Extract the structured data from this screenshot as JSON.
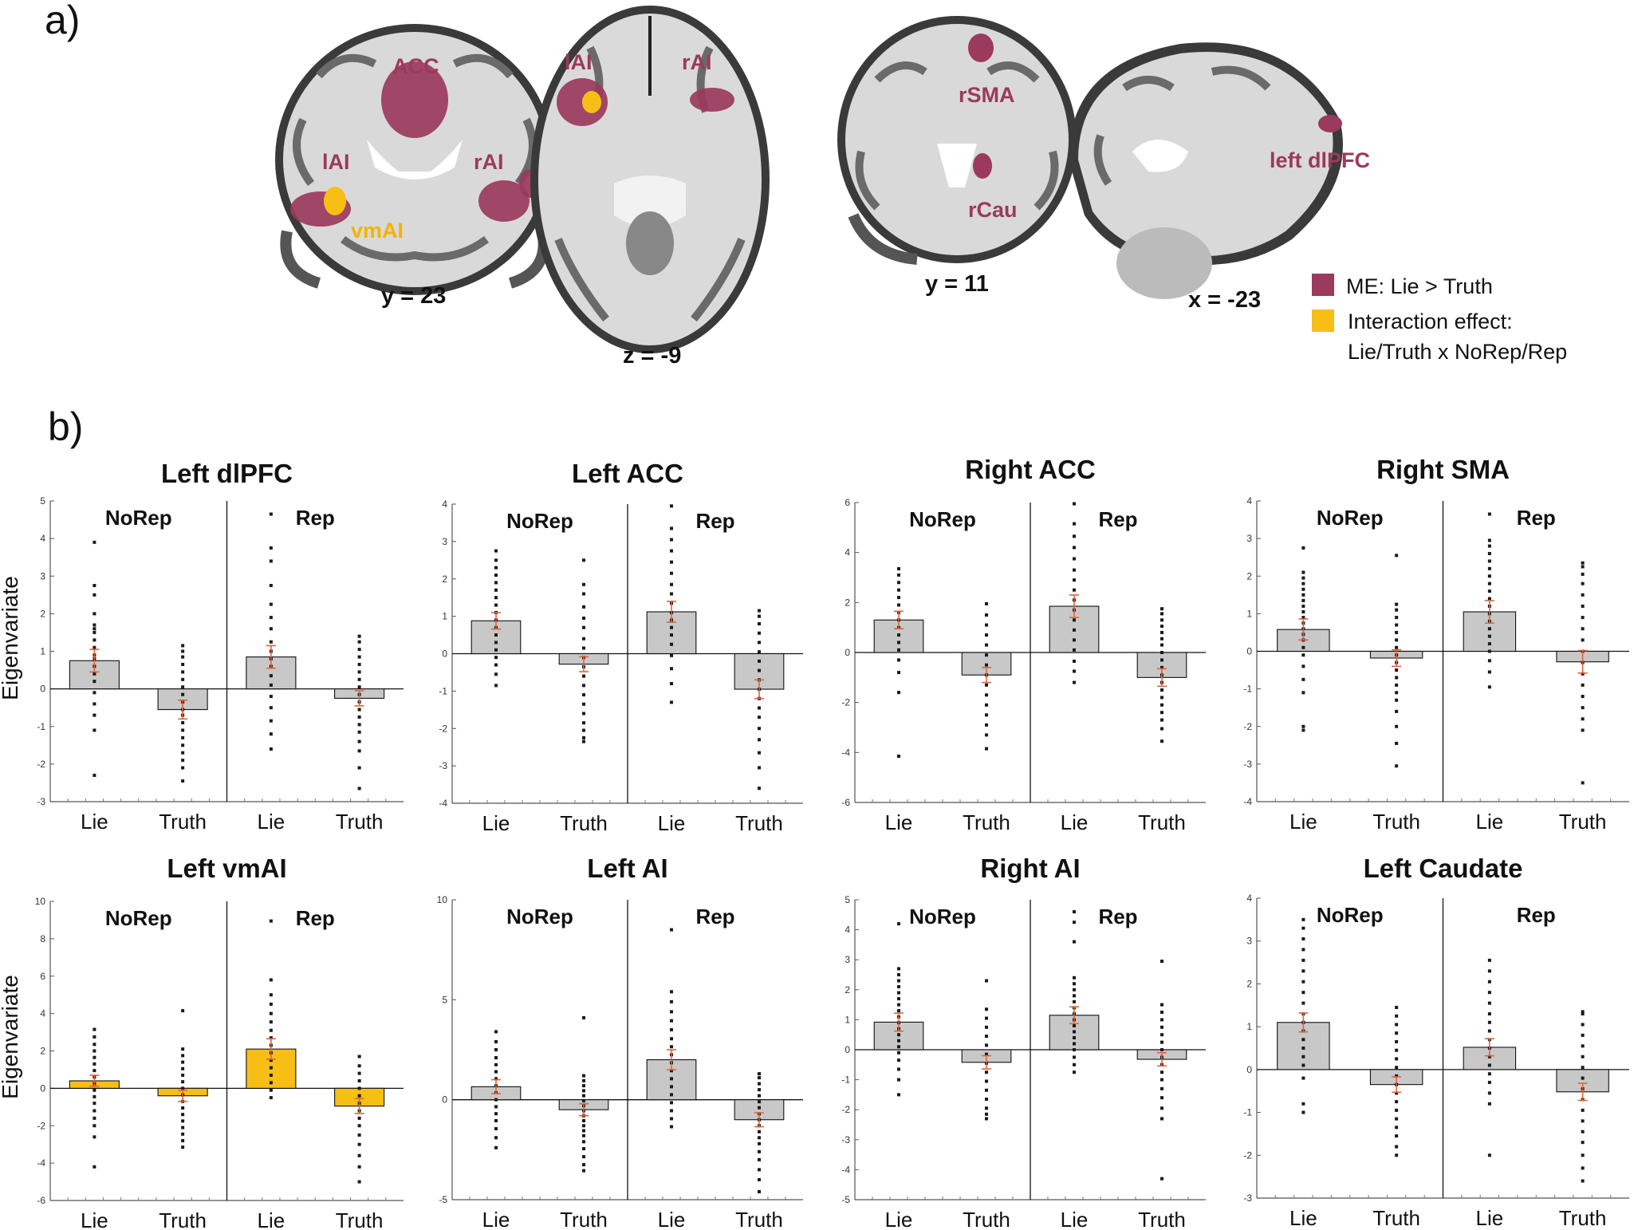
{
  "panel_labels": {
    "a": "a)",
    "b": "b)"
  },
  "brain": {
    "labels": {
      "acc": "ACC",
      "lai_cor": "lAI",
      "rai_cor": "rAI",
      "vmai": "vmAI",
      "lai_ax": "lAI",
      "rai_ax": "rAI",
      "rsma": "rSMA",
      "rcau": "rCau",
      "ldlpfc": "left dlPFC"
    },
    "coords": {
      "y23": "y = 23",
      "z9": "z = -9",
      "y11": "y = 11",
      "x23": "x = -23"
    }
  },
  "legend": {
    "me": "ME: Lie > Truth",
    "interaction_line1": "Interaction effect:",
    "interaction_line2": "Lie/Truth x NoRep/Rep"
  },
  "colors": {
    "me": "#9b3a5c",
    "interaction": "#f7be16",
    "bar": "#c8c8c8",
    "error": "#e0643c",
    "brain": "#d7d7d7"
  },
  "common": {
    "ylabel": "Eigenvariate",
    "group_labels": [
      "NoRep",
      "Rep"
    ],
    "categories": [
      "Lie",
      "Truth",
      "Lie",
      "Truth"
    ]
  },
  "chart_data": [
    {
      "type": "bar",
      "title": "Left dlPFC",
      "ylim": [
        -3,
        5
      ],
      "yticks": [
        -3,
        -2,
        -1,
        0,
        1,
        2,
        3,
        4,
        5
      ],
      "values": [
        0.75,
        -0.55,
        0.85,
        -0.25
      ],
      "errors": [
        0.3,
        0.25,
        0.3,
        0.2
      ],
      "color": "#c8c8c8",
      "points": [
        [
          3.9,
          2.75,
          2.5,
          2,
          1.7,
          1.6,
          1.5,
          1.3,
          1.1,
          0.9,
          0.8,
          0.6,
          0.4,
          0.2,
          -0.1,
          -0.4,
          -0.7,
          -1.1,
          -2.3
        ],
        [
          1.15,
          1.0,
          0.85,
          0.65,
          0.45,
          0.25,
          0.05,
          -0.15,
          -0.35,
          -0.55,
          -0.7,
          -0.9,
          -1.1,
          -1.3,
          -1.5,
          -1.7,
          -1.9,
          -2.1,
          -2.45
        ],
        [
          4.65,
          3.75,
          3.4,
          2.75,
          2.25,
          1.9,
          1.6,
          1.25,
          1.0,
          0.8,
          0.6,
          0.35,
          0.1,
          -0.2,
          -0.5,
          -0.85,
          -1.2,
          -1.6
        ],
        [
          1.4,
          1.25,
          1.05,
          0.85,
          0.65,
          0.45,
          0.25,
          0.05,
          -0.15,
          -0.35,
          -0.55,
          -0.75,
          -0.95,
          -1.15,
          -1.4,
          -1.65,
          -2.1,
          -2.65
        ]
      ]
    },
    {
      "type": "bar",
      "title": "Left ACC",
      "ylim": [
        -4,
        4
      ],
      "yticks": [
        -4,
        -3,
        -2,
        -1,
        0,
        1,
        2,
        3,
        4
      ],
      "values": [
        0.88,
        -0.28,
        1.12,
        -0.95
      ],
      "errors": [
        0.22,
        0.2,
        0.28,
        0.25
      ],
      "color": "#c8c8c8",
      "points": [
        [
          2.75,
          2.5,
          2.3,
          2.1,
          1.9,
          1.7,
          1.5,
          1.3,
          1.1,
          0.9,
          0.7,
          0.5,
          0.3,
          0.1,
          -0.1,
          -0.3,
          -0.55,
          -0.85
        ],
        [
          2.5,
          1.85,
          1.6,
          1.25,
          0.95,
          0.7,
          0.4,
          0.15,
          -0.1,
          -0.35,
          -0.6,
          -0.85,
          -1.1,
          -1.35,
          -1.6,
          -1.85,
          -2.05,
          -2.25,
          -2.35
        ],
        [
          3.95,
          3.35,
          3.05,
          2.75,
          2.45,
          2.15,
          1.85,
          1.6,
          1.35,
          1.1,
          0.9,
          0.7,
          0.5,
          0.25,
          -0.05,
          -0.4,
          -0.8,
          -1.3
        ],
        [
          1.15,
          1.0,
          0.8,
          0.55,
          0.3,
          0.05,
          -0.2,
          -0.45,
          -0.7,
          -0.95,
          -1.2,
          -1.45,
          -1.7,
          -2.0,
          -2.3,
          -2.65,
          -3.05,
          -3.6
        ]
      ]
    },
    {
      "type": "bar",
      "title": "Right ACC",
      "ylim": [
        -6,
        6
      ],
      "yticks": [
        -6,
        -4,
        -2,
        0,
        2,
        4,
        6
      ],
      "values": [
        1.3,
        -0.9,
        1.85,
        -1.0
      ],
      "errors": [
        0.35,
        0.3,
        0.45,
        0.35
      ],
      "color": "#c8c8c8",
      "points": [
        [
          3.35,
          3.1,
          2.8,
          2.5,
          2.2,
          1.9,
          1.6,
          1.3,
          1.0,
          0.7,
          0.4,
          0.1,
          -0.3,
          -0.8,
          -1.6,
          -4.15
        ],
        [
          1.95,
          1.5,
          1.1,
          0.7,
          0.3,
          -0.1,
          -0.5,
          -0.9,
          -1.3,
          -1.7,
          -2.1,
          -2.5,
          -2.9,
          -3.3,
          -3.85
        ],
        [
          5.95,
          5.15,
          4.65,
          4.2,
          3.75,
          3.3,
          2.9,
          2.5,
          2.1,
          1.7,
          1.3,
          0.9,
          0.5,
          0.1,
          -0.35,
          -0.75,
          -1.2
        ],
        [
          1.75,
          1.55,
          1.3,
          1.05,
          0.8,
          0.55,
          0.3,
          0.0,
          -0.3,
          -0.6,
          -0.9,
          -1.2,
          -1.5,
          -1.8,
          -2.1,
          -2.4,
          -2.7,
          -3.05,
          -3.55
        ]
      ]
    },
    {
      "type": "bar",
      "title": "Right SMA",
      "ylim": [
        -4,
        4
      ],
      "yticks": [
        -4,
        -3,
        -2,
        -1,
        0,
        1,
        2,
        3,
        4
      ],
      "values": [
        0.58,
        -0.18,
        1.05,
        -0.28
      ],
      "errors": [
        0.28,
        0.22,
        0.3,
        0.3
      ],
      "color": "#c8c8c8",
      "points": [
        [
          2.75,
          2.1,
          1.95,
          1.8,
          1.65,
          1.5,
          1.35,
          1.2,
          1.05,
          0.9,
          0.75,
          0.6,
          0.45,
          0.3,
          0.1,
          -0.1,
          -0.4,
          -0.75,
          -1.1,
          -2.0,
          -2.1
        ],
        [
          2.55,
          1.25,
          1.1,
          0.9,
          0.7,
          0.5,
          0.3,
          0.1,
          -0.1,
          -0.3,
          -0.5,
          -0.7,
          -0.9,
          -1.1,
          -1.3,
          -1.6,
          -2.0,
          -2.45,
          -3.05
        ],
        [
          3.65,
          2.95,
          2.8,
          2.6,
          2.4,
          2.2,
          2.0,
          1.8,
          1.6,
          1.4,
          1.2,
          1.0,
          0.8,
          0.6,
          0.4,
          0.2,
          0.0,
          -0.25,
          -0.55,
          -0.95
        ],
        [
          2.35,
          2.25,
          2.05,
          1.8,
          1.5,
          1.2,
          0.9,
          0.6,
          0.3,
          0.0,
          -0.3,
          -0.6,
          -0.9,
          -1.2,
          -1.5,
          -1.8,
          -2.1,
          -3.5
        ]
      ]
    },
    {
      "type": "bar",
      "title": "Left vmAI",
      "ylim": [
        -6,
        10
      ],
      "yticks": [
        -6,
        -4,
        -2,
        0,
        2,
        4,
        6,
        8,
        10
      ],
      "values": [
        0.4,
        -0.4,
        2.1,
        -0.95
      ],
      "errors": [
        0.3,
        0.3,
        0.55,
        0.4
      ],
      "color": "#f7be16",
      "points": [
        [
          3.15,
          2.75,
          2.35,
          2.0,
          1.65,
          1.3,
          0.95,
          0.6,
          0.25,
          -0.1,
          -0.45,
          -0.8,
          -1.2,
          -1.6,
          -2.0,
          -2.6,
          -4.2
        ],
        [
          4.15,
          2.1,
          1.75,
          1.4,
          1.05,
          0.7,
          0.35,
          0.0,
          -0.35,
          -0.7,
          -1.05,
          -1.4,
          -1.75,
          -2.1,
          -2.45,
          -2.8,
          -3.15
        ],
        [
          8.95,
          5.8,
          5.0,
          4.5,
          4.0,
          3.55,
          3.1,
          2.7,
          2.3,
          1.9,
          1.5,
          1.1,
          0.7,
          0.3,
          -0.1,
          -0.5
        ],
        [
          1.7,
          1.2,
          0.8,
          0.4,
          0.0,
          -0.4,
          -0.8,
          -1.2,
          -1.6,
          -2.0,
          -2.5,
          -3.0,
          -3.6,
          -4.2,
          -5.0
        ]
      ]
    },
    {
      "type": "bar",
      "title": "Left AI",
      "ylim": [
        -5,
        10
      ],
      "yticks": [
        -5,
        0,
        5,
        10
      ],
      "values": [
        0.65,
        -0.5,
        2.0,
        -1.0
      ],
      "errors": [
        0.35,
        0.3,
        0.5,
        0.35
      ],
      "color": "#c8c8c8",
      "points": [
        [
          3.4,
          2.9,
          2.5,
          2.1,
          1.75,
          1.4,
          1.05,
          0.7,
          0.35,
          0.0,
          -0.35,
          -0.7,
          -1.05,
          -1.45,
          -1.9,
          -2.4
        ],
        [
          4.1,
          1.2,
          0.95,
          0.7,
          0.45,
          0.2,
          -0.05,
          -0.3,
          -0.55,
          -0.8,
          -1.05,
          -1.3,
          -1.55,
          -1.8,
          -2.1,
          -2.45,
          -2.85,
          -3.25,
          -3.55
        ],
        [
          8.5,
          5.4,
          4.9,
          4.4,
          3.95,
          3.5,
          3.05,
          2.65,
          2.25,
          1.85,
          1.45,
          1.05,
          0.65,
          0.25,
          -0.15,
          -0.55,
          -0.95,
          -1.35
        ],
        [
          1.3,
          1.1,
          0.8,
          0.5,
          0.2,
          -0.1,
          -0.4,
          -0.7,
          -1.0,
          -1.3,
          -1.6,
          -1.9,
          -2.2,
          -2.6,
          -3.0,
          -3.5,
          -4.0,
          -4.6
        ]
      ]
    },
    {
      "type": "bar",
      "title": "Right AI",
      "ylim": [
        -5,
        5
      ],
      "yticks": [
        -5,
        -4,
        -3,
        -2,
        -1,
        0,
        1,
        2,
        3,
        4,
        5
      ],
      "values": [
        0.92,
        -0.42,
        1.15,
        -0.32
      ],
      "errors": [
        0.3,
        0.22,
        0.28,
        0.22
      ],
      "color": "#c8c8c8",
      "points": [
        [
          4.2,
          2.7,
          2.5,
          2.3,
          2.1,
          1.9,
          1.7,
          1.5,
          1.3,
          1.1,
          0.9,
          0.7,
          0.5,
          0.3,
          0.1,
          -0.1,
          -0.35,
          -0.65,
          -1.0,
          -1.5
        ],
        [
          2.3,
          1.35,
          1.05,
          0.75,
          0.45,
          0.15,
          -0.15,
          -0.45,
          -0.75,
          -1.05,
          -1.35,
          -1.65,
          -1.95,
          -2.15,
          -2.3
        ],
        [
          4.6,
          4.25,
          3.6,
          2.4,
          2.2,
          2.0,
          1.8,
          1.6,
          1.4,
          1.2,
          1.0,
          0.8,
          0.6,
          0.4,
          0.2,
          0.0,
          -0.25,
          -0.5,
          -0.75
        ],
        [
          2.95,
          1.5,
          1.25,
          1.0,
          0.75,
          0.5,
          0.25,
          0.0,
          -0.25,
          -0.5,
          -0.75,
          -1.0,
          -1.3,
          -1.6,
          -1.95,
          -2.3,
          -4.3
        ]
      ]
    },
    {
      "type": "bar",
      "title": "Left Caudate",
      "ylim": [
        -3,
        4
      ],
      "yticks": [
        -3,
        -2,
        -1,
        0,
        1,
        2,
        3,
        4
      ],
      "values": [
        1.1,
        -0.35,
        0.52,
        -0.52
      ],
      "errors": [
        0.22,
        0.18,
        0.2,
        0.2
      ],
      "color": "#c8c8c8",
      "points": [
        [
          3.5,
          3.3,
          3.05,
          2.8,
          2.55,
          2.3,
          2.05,
          1.8,
          1.55,
          1.3,
          1.1,
          0.9,
          0.7,
          0.5,
          0.3,
          0.1,
          -0.2,
          -0.8,
          -1.0
        ],
        [
          1.45,
          1.25,
          1.05,
          0.85,
          0.65,
          0.45,
          0.25,
          0.05,
          -0.15,
          -0.35,
          -0.55,
          -0.75,
          -0.95,
          -1.15,
          -1.35,
          -1.55,
          -1.8,
          -2.0
        ],
        [
          2.55,
          2.3,
          2.05,
          1.8,
          1.55,
          1.3,
          1.1,
          0.9,
          0.7,
          0.5,
          0.3,
          0.1,
          -0.1,
          -0.3,
          -0.55,
          -0.8,
          -2.0
        ],
        [
          1.35,
          1.3,
          1.05,
          0.8,
          0.55,
          0.3,
          0.05,
          -0.2,
          -0.45,
          -0.7,
          -0.95,
          -1.2,
          -1.45,
          -1.7,
          -2.0,
          -2.3,
          -2.6
        ]
      ]
    }
  ]
}
